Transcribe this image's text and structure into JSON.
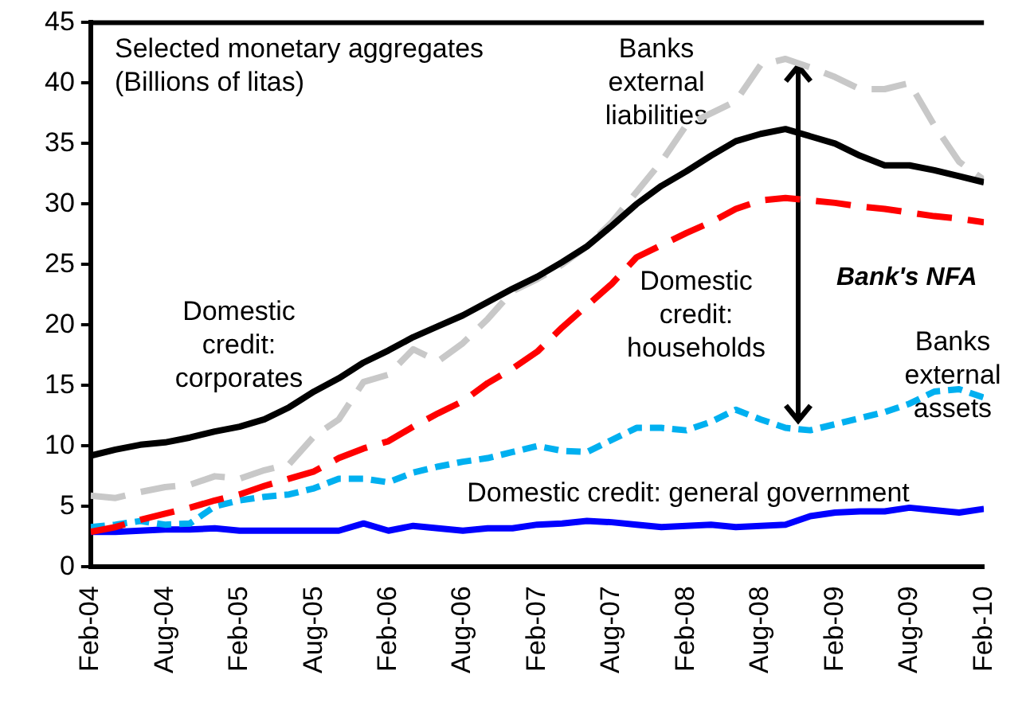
{
  "chart_data": {
    "type": "line",
    "title": "Selected monetary aggregates\n(Billions of litas)",
    "x": [
      "2004-02",
      "2004-04",
      "2004-06",
      "2004-08",
      "2004-10",
      "2004-12",
      "2005-02",
      "2005-04",
      "2005-06",
      "2005-08",
      "2005-10",
      "2005-12",
      "2006-02",
      "2006-04",
      "2006-06",
      "2006-08",
      "2006-10",
      "2006-12",
      "2007-02",
      "2007-04",
      "2007-06",
      "2007-08",
      "2007-10",
      "2007-12",
      "2008-02",
      "2008-04",
      "2008-06",
      "2008-08",
      "2008-10",
      "2008-12",
      "2009-02",
      "2009-04",
      "2009-06",
      "2009-08",
      "2009-10",
      "2009-12",
      "2010-02"
    ],
    "series": [
      {
        "name": "Domestic credit: corporates",
        "color": "#000000",
        "line_style": "solid",
        "values": [
          9.2,
          9.7,
          10.1,
          10.3,
          10.7,
          11.2,
          11.6,
          12.2,
          13.2,
          14.5,
          15.6,
          16.9,
          17.9,
          19.0,
          19.9,
          20.8,
          21.9,
          23.0,
          24.0,
          25.2,
          26.5,
          28.2,
          30.0,
          31.5,
          32.7,
          34.0,
          35.2,
          35.8,
          36.2,
          35.6,
          35.0,
          34.0,
          33.2,
          33.2,
          32.8,
          32.3,
          31.8
        ]
      },
      {
        "name": "Banks external liabilities",
        "color": "#c8c8c8",
        "line_style": "dashed",
        "values": [
          5.9,
          5.7,
          6.2,
          6.6,
          6.8,
          7.5,
          7.3,
          8.0,
          8.5,
          10.8,
          12.2,
          15.3,
          15.9,
          18.0,
          17.0,
          18.5,
          20.5,
          22.8,
          23.8,
          25.0,
          26.5,
          28.5,
          31.0,
          33.5,
          36.5,
          37.5,
          38.5,
          41.5,
          42.0,
          41.3,
          40.5,
          39.5,
          39.5,
          40.0,
          36.5,
          33.5,
          32.0
        ]
      },
      {
        "name": "Domestic credit: households",
        "color": "#ff0000",
        "line_style": "dashed",
        "values": [
          2.9,
          3.3,
          3.9,
          4.4,
          4.9,
          5.5,
          6.0,
          6.7,
          7.3,
          7.9,
          9.0,
          9.8,
          10.4,
          11.6,
          12.7,
          13.7,
          15.2,
          16.4,
          17.8,
          19.8,
          21.6,
          23.4,
          25.6,
          26.6,
          27.6,
          28.5,
          29.6,
          30.3,
          30.5,
          30.3,
          30.1,
          29.8,
          29.6,
          29.3,
          29.0,
          28.8,
          28.5
        ]
      },
      {
        "name": "Banks external assets",
        "color": "#00b0f0",
        "line_style": "dotted",
        "values": [
          3.3,
          3.5,
          3.8,
          3.5,
          3.6,
          5.0,
          5.5,
          5.8,
          6.0,
          6.5,
          7.3,
          7.3,
          7.0,
          7.8,
          8.3,
          8.7,
          9.0,
          9.5,
          10.0,
          9.6,
          9.5,
          10.5,
          11.5,
          11.5,
          11.3,
          12.0,
          13.0,
          12.2,
          11.5,
          11.3,
          11.8,
          12.3,
          12.8,
          13.5,
          14.5,
          14.7,
          14.0
        ]
      },
      {
        "name": "Domestic credit: general government",
        "color": "#0000ff",
        "line_style": "solid",
        "values": [
          2.9,
          2.9,
          3.0,
          3.1,
          3.1,
          3.2,
          3.0,
          3.0,
          3.0,
          3.0,
          3.0,
          3.6,
          3.0,
          3.4,
          3.2,
          3.0,
          3.2,
          3.2,
          3.5,
          3.6,
          3.8,
          3.7,
          3.5,
          3.3,
          3.4,
          3.5,
          3.3,
          3.4,
          3.5,
          4.2,
          4.5,
          4.6,
          4.6,
          4.9,
          4.7,
          4.5,
          4.8
        ]
      }
    ],
    "xlim": [
      "2004-02",
      "2010-02"
    ],
    "xticks": [
      {
        "value": "2004-02",
        "label": "Feb-04"
      },
      {
        "value": "2004-08",
        "label": "Aug-04"
      },
      {
        "value": "2005-02",
        "label": "Feb-05"
      },
      {
        "value": "2005-08",
        "label": "Aug-05"
      },
      {
        "value": "2006-02",
        "label": "Feb-06"
      },
      {
        "value": "2006-08",
        "label": "Aug-06"
      },
      {
        "value": "2007-02",
        "label": "Feb-07"
      },
      {
        "value": "2007-08",
        "label": "Aug-07"
      },
      {
        "value": "2008-02",
        "label": "Feb-08"
      },
      {
        "value": "2008-08",
        "label": "Aug-08"
      },
      {
        "value": "2009-02",
        "label": "Feb-09"
      },
      {
        "value": "2009-08",
        "label": "Aug-09"
      },
      {
        "value": "2010-02",
        "label": "Feb-10"
      }
    ],
    "ylim": [
      0,
      45
    ],
    "yticks": [
      0,
      5,
      10,
      15,
      20,
      25,
      30,
      35,
      40,
      45
    ],
    "annotations": [
      "Bank's NFA"
    ],
    "grid": false,
    "legend": false,
    "marker": "none"
  }
}
